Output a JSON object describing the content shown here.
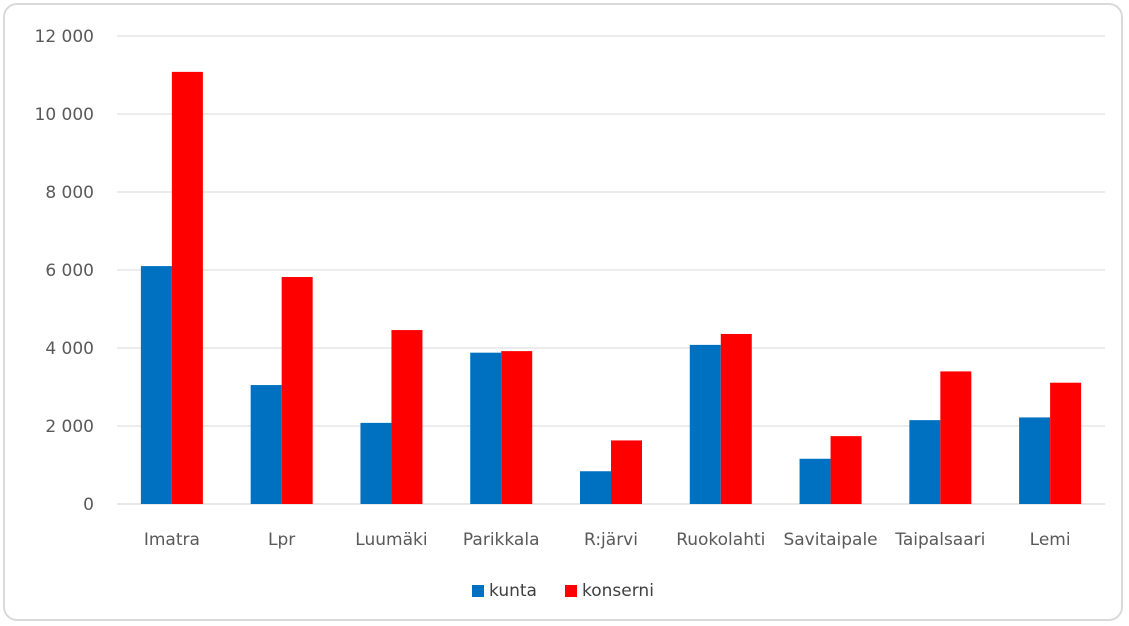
{
  "chart_data": {
    "type": "bar",
    "title": "",
    "xlabel": "",
    "ylabel": "",
    "ylim": [
      0,
      12000
    ],
    "yticks": [
      0,
      2000,
      4000,
      6000,
      8000,
      10000,
      12000
    ],
    "ytick_labels": [
      "0",
      "2 000",
      "4 000",
      "6 000",
      "8 000",
      "10 000",
      "12 000"
    ],
    "grid": "horizontal",
    "legend_position": "bottom",
    "categories": [
      "Imatra",
      "Lpr",
      "Luumäki",
      "Parikkala",
      "R:järvi",
      "Ruokolahti",
      "Savitaipale",
      "Taipalsaari",
      "Lemi"
    ],
    "series": [
      {
        "name": "kunta",
        "color": "#0070c0",
        "values": [
          6100,
          3050,
          2080,
          3880,
          840,
          4080,
          1160,
          2150,
          2220
        ]
      },
      {
        "name": "konserni",
        "color": "#ff0000",
        "values": [
          11080,
          5820,
          4460,
          3920,
          1630,
          4360,
          1740,
          3400,
          3110
        ]
      }
    ]
  }
}
